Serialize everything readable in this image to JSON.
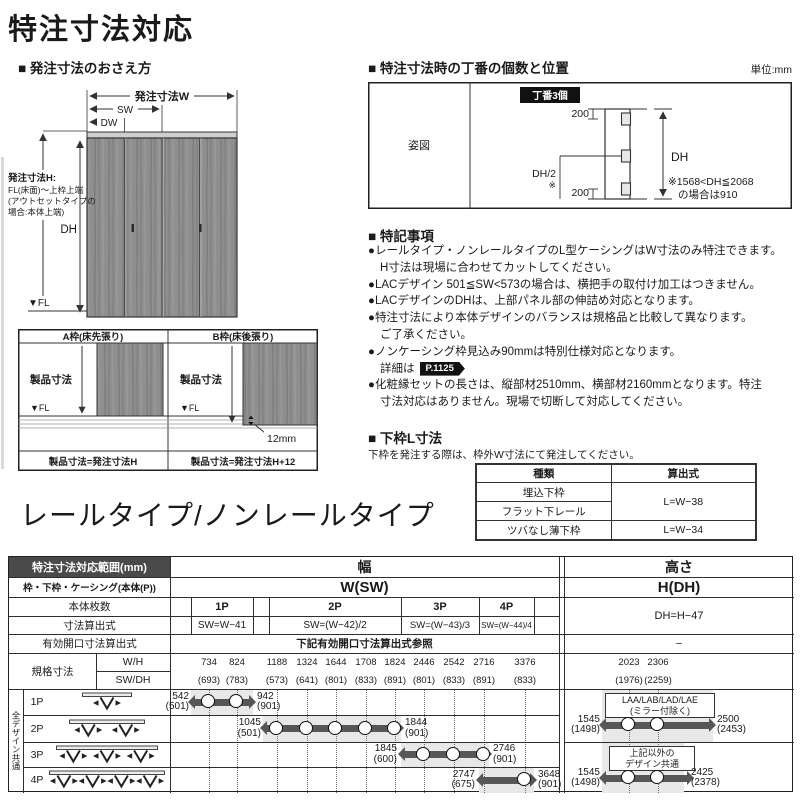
{
  "title": "特注寸法対応",
  "big_heading": "レールタイプ/ノンレールタイプ",
  "order_section": {
    "heading": "■ 発注寸法のおさえ方",
    "dim_w": "発注寸法W",
    "dim_sw": "SW",
    "dim_dw": "DW",
    "dim_h_label": "発注寸法H:",
    "dim_h_note1": "FL(床面)～上枠上端",
    "dim_h_note2": "(アウトセットタイプの",
    "dim_h_note3": "場合:本体上端)",
    "dim_dh": "DH",
    "fl": "▼FL"
  },
  "frame": {
    "col_a": "A枠(床先張り)",
    "col_b": "B枠(床後張り)",
    "product_dim": "製品寸法",
    "fl": "▼FL",
    "offset": "12mm",
    "formula_a": "製品寸法=発注寸法H",
    "formula_b": "製品寸法=発注寸法H+12"
  },
  "hinge": {
    "heading": "■ 特注寸法時の丁番の個数と位置",
    "unit": "単位:mm",
    "view_label": "姿図",
    "badge": "丁番3個",
    "top200": "200",
    "bottom200": "200",
    "dh_half": "DH/2",
    "asterisk": "※",
    "dh": "DH",
    "note1": "※1568<DH≦2068",
    "note2": "の場合は910"
  },
  "notes": {
    "heading": "■ 特記事項",
    "bullets": [
      {
        "lines": [
          "●レールタイプ・ノンレールタイプのL型ケーシングはW寸法のみ特注できます。",
          "H寸法は現場に合わせてカットしてください。"
        ]
      },
      {
        "lines": [
          "●LACデザイン 501≦SW<573の場合は、横把手の取付け加工はつきません。"
        ]
      },
      {
        "lines": [
          "●LACデザインのDHは、上部パネル部の伸詰め対応となります。"
        ]
      },
      {
        "lines": [
          "●特注寸法により本体デザインのバランスは規格品と比較して異なります。",
          "ご了承ください。"
        ]
      },
      {
        "lines": [
          "●ノンケーシング枠見込み90mmは特別仕様対応となります。"
        ],
        "suffix_prefix": "詳細は",
        "suffix_badge": "P.1125"
      },
      {
        "lines": [
          "●化粧縁セットの長さは、縦部材2510mm、横部材2160mmとなります。特注",
          "寸法対応はありません。現場で切断して対応してください。"
        ]
      }
    ]
  },
  "sill": {
    "heading": "■ 下枠L寸法",
    "note": "下枠を発注する際は、枠外W寸法にて発注してください。",
    "col_type": "種類",
    "col_formula": "算出式",
    "row1": "埋込下枠",
    "row2": "フラット下レール",
    "row3": "ツバなし薄下枠",
    "f12": "L=W−38",
    "f3": "L=W−34"
  },
  "main_table": {
    "title_cell": "特注寸法対応範囲(mm)",
    "row2_label": "枠・下枠・ケーシング(本体(P))",
    "row3_label": "本体枚数",
    "row4_label": "寸法算出式",
    "row5_label": "有効開口寸法算出式",
    "row6_label": "規格寸法",
    "wh_label": "W/H",
    "swdh_label": "SW/DH",
    "width_header": "幅",
    "width_sub": "W(SW)",
    "height_header": "高さ",
    "height_sub": "H(DH)",
    "height_formula": "DH=H−47",
    "opening_ref": "下記有効開口寸法算出式参照",
    "opening_na": "−",
    "side_label": "全デザイン共通",
    "panels": [
      {
        "label": "1P",
        "formula": "SW=W−41"
      },
      {
        "label": "2P",
        "formula": "SW=(W−42)/2"
      },
      {
        "label": "3P",
        "formula": "SW=(W−43)/3"
      },
      {
        "label": "4P",
        "formula": "SW=(W−44)/4"
      }
    ],
    "std_w": [
      {
        "v": "734",
        "s": "(693)"
      },
      {
        "v": "824",
        "s": "(783)"
      },
      {
        "v": "1188",
        "s": "(573)"
      },
      {
        "v": "1324",
        "s": "(641)"
      },
      {
        "v": "1644",
        "s": "(801)"
      },
      {
        "v": "1708",
        "s": "(833)"
      },
      {
        "v": "1824",
        "s": "(891)"
      },
      {
        "v": "2446",
        "s": "(801)"
      },
      {
        "v": "2542",
        "s": "(833)"
      },
      {
        "v": "2716",
        "s": "(891)"
      },
      {
        "v": "3376",
        "s": "(833)"
      }
    ],
    "std_h": [
      {
        "v": "2023",
        "s": "(1976)"
      },
      {
        "v": "2306",
        "s": "(2259)"
      }
    ],
    "bars": [
      {
        "panel": "1P",
        "min": "542",
        "min_note": "(501)",
        "max": "942",
        "max_note": "(901)"
      },
      {
        "panel": "2P",
        "min": "1045",
        "min_note": "(501)",
        "max": "1844",
        "max_note": "(901)"
      },
      {
        "panel": "3P",
        "min": "1845",
        "min_note": "(600)",
        "max": "2746",
        "max_note": "(901)"
      },
      {
        "panel": "4P",
        "min": "2747",
        "min_note": "(675)",
        "max": "3648",
        "max_note": "(901)"
      }
    ],
    "height_groups": [
      {
        "label1": "LAA/LAB/LAD/LAE",
        "label2": "(ミラー付除く)",
        "min": "1545",
        "min_note": "(1498)",
        "max": "2500",
        "max_note": "(2453)"
      },
      {
        "label1": "上記以外の",
        "label2": "デザイン共通",
        "min": "1545",
        "min_note": "(1498)",
        "max": "2425",
        "max_note": "(2378)"
      }
    ]
  }
}
